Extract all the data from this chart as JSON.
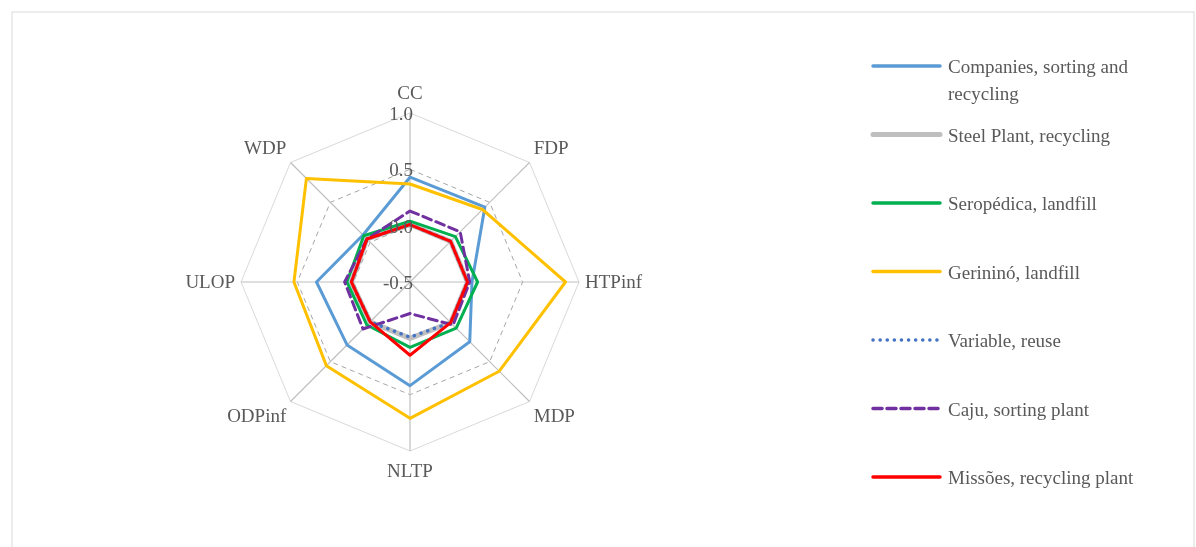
{
  "chart_data": {
    "type": "radar",
    "categories": [
      "CC",
      "FDP",
      "HTPinf",
      "MDP",
      "NLTP",
      "ODPinf",
      "ULOP",
      "WDP"
    ],
    "ylim": [
      -0.5,
      1.0
    ],
    "yticks": [
      -0.5,
      {
        "value": 0,
        "label": "0.0"
      },
      0.5,
      {
        "value": 1,
        "label": "1.0"
      }
    ],
    "grid": true,
    "legend": "right",
    "series": [
      {
        "name": "Companies, sorting and recycling",
        "color": "#5b9bd5",
        "line_style": "solid",
        "values": [
          0.43,
          0.44,
          0.05,
          0.25,
          0.42,
          0.29,
          0.33,
          0.09
        ]
      },
      {
        "name": "Steel Plant, recycling",
        "color": "#bfbfbf",
        "line_style": "solid",
        "values": [
          0.01,
          0.01,
          0.01,
          0.01,
          0.0,
          0.0,
          0.02,
          0.04
        ]
      },
      {
        "name": "Seropédica, landfill",
        "color": "#00b050",
        "line_style": "solid",
        "values": [
          0.04,
          0.07,
          0.1,
          0.08,
          0.08,
          0.04,
          0.06,
          0.08
        ]
      },
      {
        "name": "Gerininó, landfill",
        "color": "#ffc000",
        "line_style": "solid",
        "values": [
          0.37,
          0.41,
          0.88,
          0.62,
          0.71,
          0.55,
          0.53,
          0.8
        ]
      },
      {
        "name": "Variable, reuse",
        "color": "#4472c4",
        "line_style": "dotted",
        "values": [
          0.01,
          0.01,
          0.01,
          0.01,
          -0.01,
          0.0,
          0.02,
          0.04
        ]
      },
      {
        "name": "Caju, sorting plant",
        "color": "#7030a0",
        "line_style": "dashed",
        "values": [
          0.13,
          0.13,
          0.03,
          0.04,
          -0.22,
          0.09,
          0.08,
          0.04
        ]
      },
      {
        "name": "Missões, recycling plant",
        "color": "#ff0000",
        "line_style": "solid",
        "values": [
          0.01,
          0.01,
          0.01,
          0.01,
          0.15,
          0.0,
          0.02,
          0.04
        ]
      }
    ]
  }
}
